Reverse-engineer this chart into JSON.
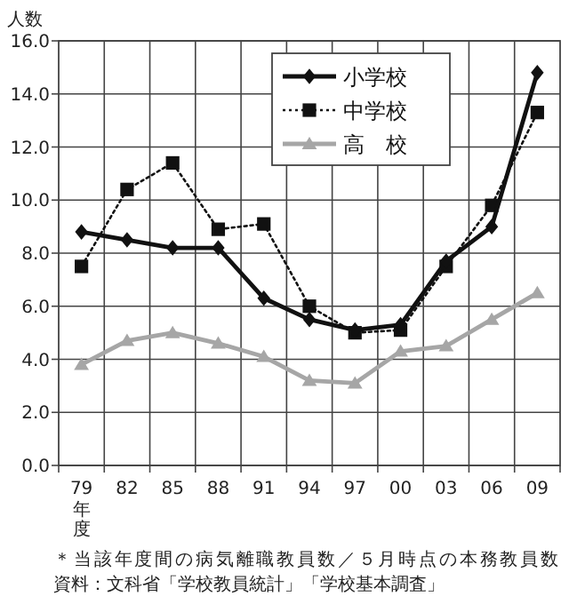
{
  "chart_data": {
    "type": "line",
    "ylabel": "人数",
    "xlabel": "年度",
    "categories": [
      "79",
      "82",
      "85",
      "88",
      "91",
      "94",
      "97",
      "00",
      "03",
      "06",
      "09"
    ],
    "series": [
      {
        "name": "小学校",
        "color": "#111111",
        "marker": "diamond",
        "line_style": "solid",
        "values": [
          8.8,
          8.5,
          8.2,
          8.2,
          6.3,
          5.5,
          5.1,
          5.3,
          7.7,
          9.0,
          14.8
        ]
      },
      {
        "name": "中学校",
        "color": "#111111",
        "marker": "square",
        "line_style": "dotted",
        "values": [
          7.5,
          10.4,
          11.4,
          8.9,
          9.1,
          6.0,
          5.0,
          5.1,
          7.5,
          9.8,
          13.3
        ]
      },
      {
        "name": "高　校",
        "color": "#a6a6a6",
        "marker": "triangle",
        "line_style": "solid",
        "values": [
          3.8,
          4.7,
          5.0,
          4.6,
          4.1,
          3.2,
          3.1,
          4.3,
          4.5,
          5.5,
          6.5
        ]
      }
    ],
    "ylim": [
      0,
      16
    ],
    "yticks": [
      {
        "value": 0,
        "label": "0.0"
      },
      {
        "value": 2,
        "label": "2.0"
      },
      {
        "value": 4,
        "label": "4.0"
      },
      {
        "value": 6,
        "label": "6.0"
      },
      {
        "value": 8,
        "label": "8.0"
      },
      {
        "value": 10,
        "label": "10.0"
      },
      {
        "value": 12,
        "label": "12.0"
      },
      {
        "value": 14,
        "label": "14.0"
      },
      {
        "value": 16,
        "label": "16.0"
      }
    ],
    "grid": true,
    "legend": "top",
    "annotations": [
      "＊当該年度間の病気離職教員数／５月時点の本務教員数",
      "資料：文科省「学校教員統計」「学校基本調査」"
    ]
  }
}
